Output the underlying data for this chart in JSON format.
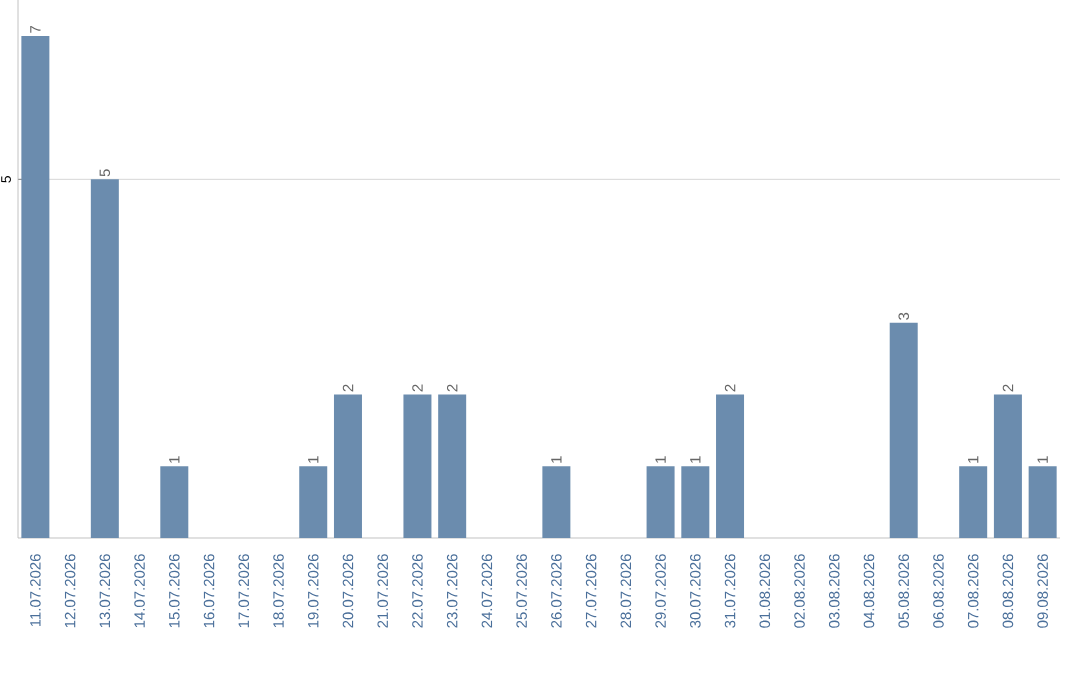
{
  "chart_data": {
    "type": "bar",
    "categories": [
      "11.07.2026",
      "12.07.2026",
      "13.07.2026",
      "14.07.2026",
      "15.07.2026",
      "16.07.2026",
      "17.07.2026",
      "18.07.2026",
      "19.07.2026",
      "20.07.2026",
      "21.07.2026",
      "22.07.2026",
      "23.07.2026",
      "24.07.2026",
      "25.07.2026",
      "26.07.2026",
      "27.07.2026",
      "28.07.2026",
      "29.07.2026",
      "30.07.2026",
      "31.07.2026",
      "01.08.2026",
      "02.08.2026",
      "03.08.2026",
      "04.08.2026",
      "05.08.2026",
      "06.08.2026",
      "07.08.2026",
      "08.08.2026",
      "09.08.2026"
    ],
    "values": [
      7,
      0,
      5,
      0,
      1,
      0,
      0,
      0,
      1,
      2,
      0,
      2,
      2,
      0,
      0,
      1,
      0,
      0,
      1,
      1,
      2,
      0,
      0,
      0,
      0,
      3,
      0,
      1,
      2,
      1
    ],
    "value_labels": [
      "7",
      null,
      "5",
      null,
      "1",
      null,
      null,
      null,
      "1",
      "2",
      null,
      "2",
      "2",
      null,
      null,
      "1",
      null,
      null,
      "1",
      "1",
      "2",
      null,
      null,
      null,
      null,
      "3",
      null,
      "1",
      "2",
      "1"
    ],
    "color": "#6b8cae",
    "ylim": [
      0,
      7.5
    ],
    "yticks": [
      5
    ],
    "grid": "y"
  }
}
